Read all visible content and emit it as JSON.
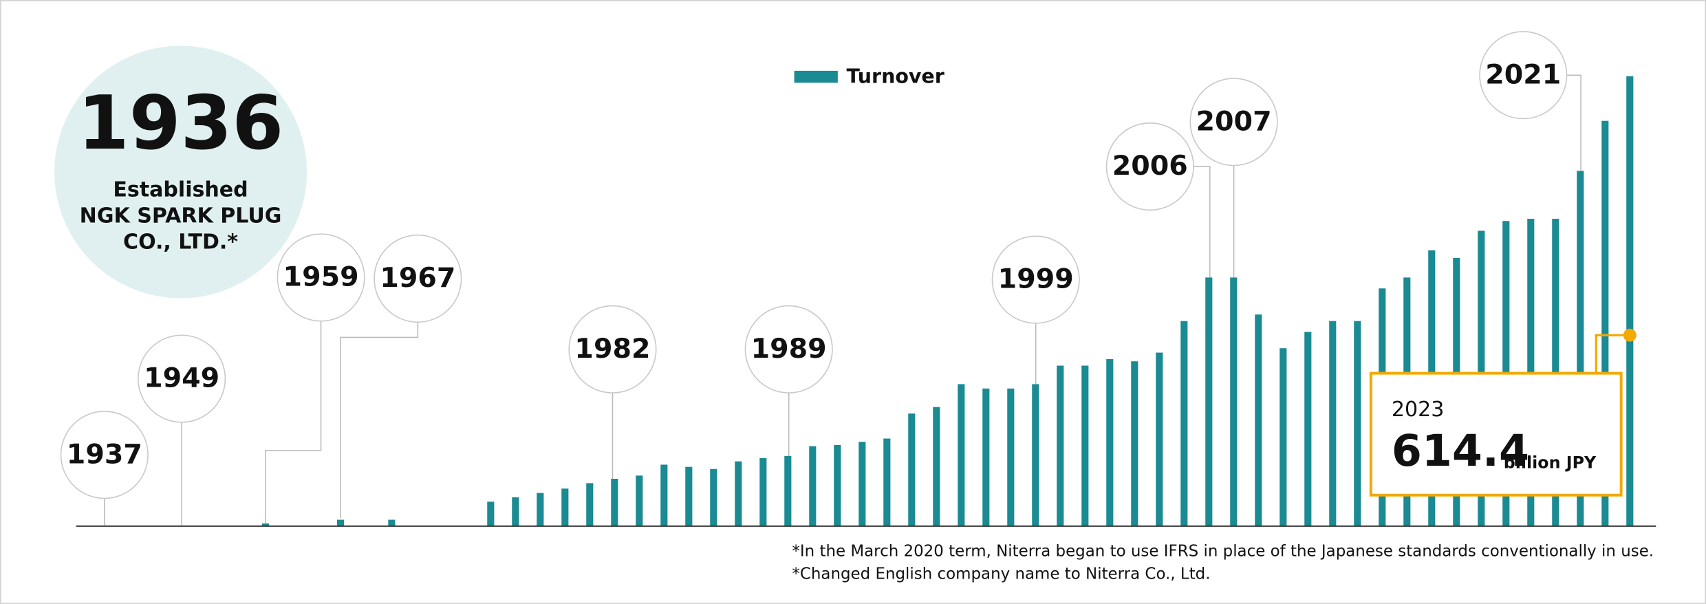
{
  "chart_data": {
    "type": "bar",
    "categories": [
      null,
      null,
      null,
      null,
      null,
      null,
      null,
      null,
      null,
      null,
      null,
      null,
      null,
      null,
      null,
      null,
      null,
      null,
      null,
      null,
      null,
      null,
      null,
      null,
      null,
      null,
      null,
      null,
      null,
      null,
      null,
      null,
      null,
      null,
      null,
      null,
      null,
      null,
      null,
      null,
      null,
      null,
      null,
      null,
      null,
      null,
      null,
      null,
      null,
      null
    ],
    "series": [
      {
        "name": "Turnover",
        "color": "#1a8a93",
        "values": [
          3,
          8,
          8,
          32.7,
          38.7,
          44.6,
          50.6,
          58,
          64,
          68.4,
          83.3,
          80.3,
          77.4,
          87.8,
          92.2,
          95.2,
          108.6,
          110.1,
          114.5,
          119,
          153.2,
          162.1,
          193.4,
          187.4,
          187.4,
          193.4,
          218.7,
          218.7,
          227.6,
          224.6,
          236.5,
          279.7,
          339.2,
          339.2,
          288.6,
          242.5,
          264.8,
          279.7,
          279.7,
          324.3,
          339.2,
          376.4,
          366,
          403.1,
          416.5,
          419.5,
          419.5,
          485,
          553.4,
          614.4
        ]
      }
    ],
    "founding": {
      "year": "1936",
      "lines": [
        "Established",
        "NGK SPARK PLUG",
        "CO., LTD.*"
      ]
    },
    "milestones": [
      "1937",
      "1949",
      "1959",
      "1967",
      "1982",
      "1989",
      "1999",
      "2006",
      "2007",
      "2021"
    ],
    "callout": {
      "year": "2023",
      "unit": "billion JPY"
    },
    "footnotes": [
      "*In the March 2020 term, Niterra began to use IFRS in place of the Japanese standards conventionally in use.",
      "*Changed English company name to Niterra Co., Ltd."
    ]
  }
}
